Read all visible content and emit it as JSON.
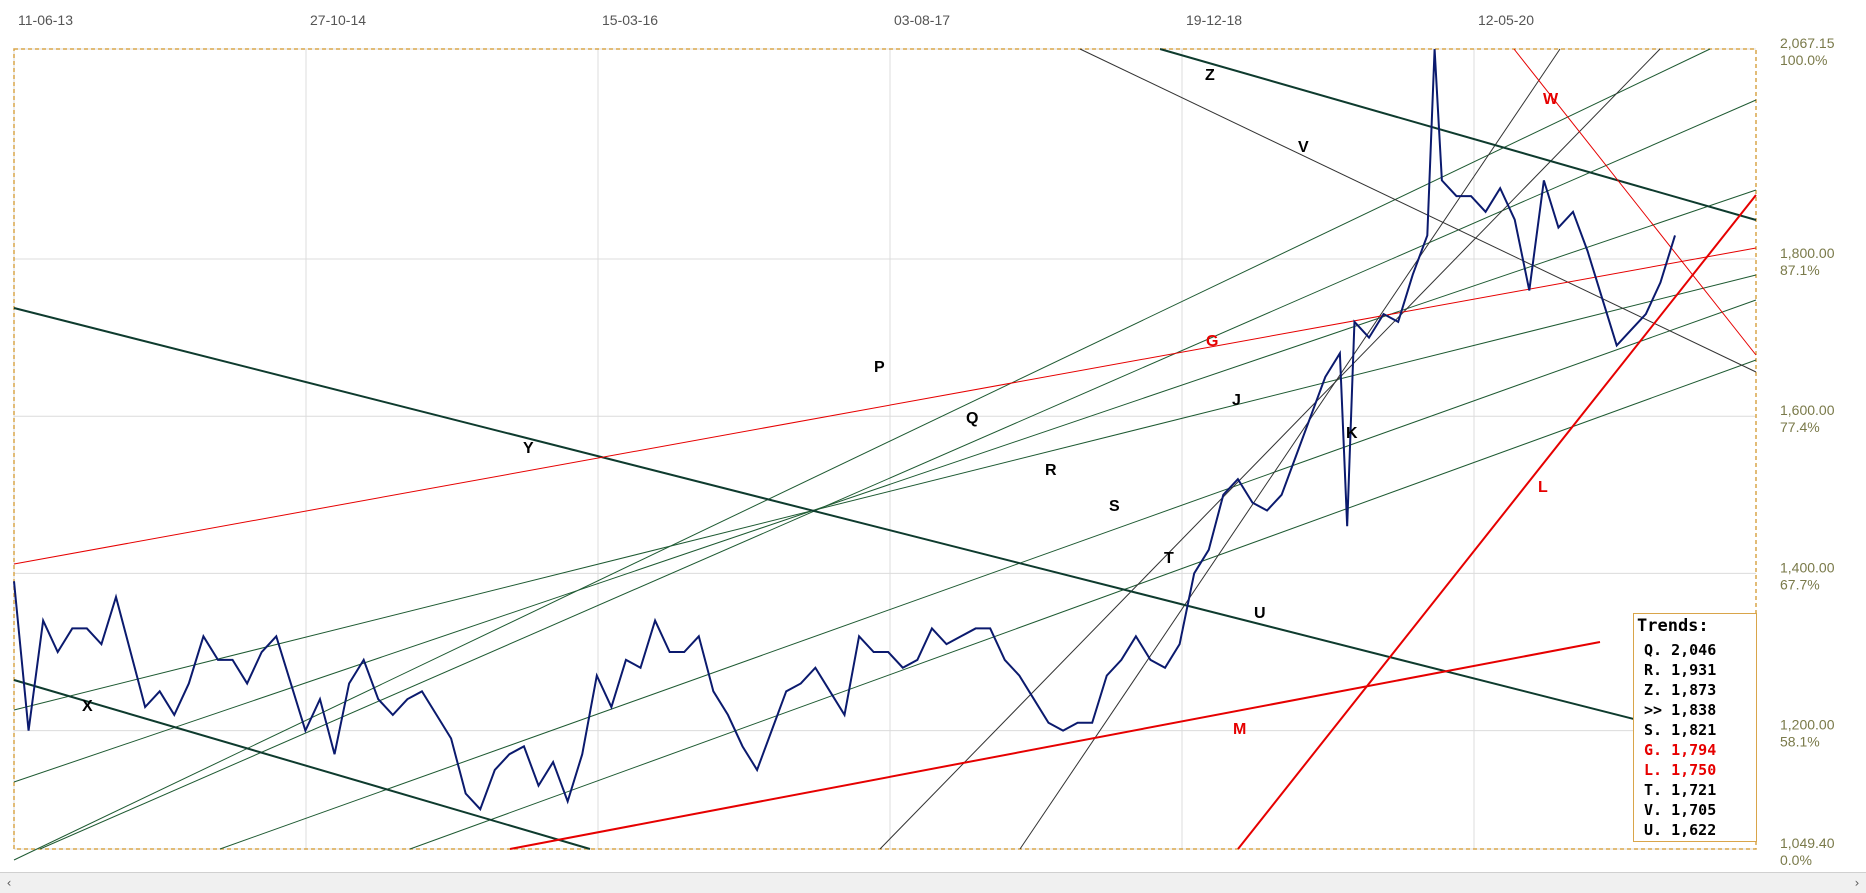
{
  "chart_data": {
    "type": "line",
    "x_axis": {
      "labels": [
        "11-06-13",
        "27-10-14",
        "15-03-16",
        "03-08-17",
        "19-12-18",
        "12-05-20"
      ],
      "range": [
        "11-06-13",
        "21-06-21"
      ]
    },
    "y_axis": {
      "range": [
        1049.4,
        2067.15
      ],
      "price_labels": [
        "2,067.15",
        "1,800.00",
        "1,600.00",
        "1,400.00",
        "1,200.00",
        "1,049.40"
      ],
      "percent_labels": [
        "100.0%",
        "87.1%",
        "77.4%",
        "67.7%",
        "58.1%",
        "0.0%"
      ],
      "price_values": [
        2067.15,
        1800,
        1600,
        1400,
        1200,
        1049.4
      ]
    },
    "grid": true,
    "series": [
      {
        "color": "#0b1a6e",
        "points": [
          [
            0.0,
            1390
          ],
          [
            0.01,
            1200
          ],
          [
            0.02,
            1340
          ],
          [
            0.03,
            1300
          ],
          [
            0.04,
            1330
          ],
          [
            0.05,
            1330
          ],
          [
            0.06,
            1310
          ],
          [
            0.07,
            1370
          ],
          [
            0.08,
            1300
          ],
          [
            0.09,
            1230
          ],
          [
            0.1,
            1250
          ],
          [
            0.11,
            1220
          ],
          [
            0.12,
            1260
          ],
          [
            0.13,
            1320
          ],
          [
            0.14,
            1290
          ],
          [
            0.15,
            1290
          ],
          [
            0.16,
            1260
          ],
          [
            0.17,
            1300
          ],
          [
            0.18,
            1320
          ],
          [
            0.19,
            1260
          ],
          [
            0.2,
            1200
          ],
          [
            0.21,
            1240
          ],
          [
            0.22,
            1170
          ],
          [
            0.23,
            1260
          ],
          [
            0.24,
            1290
          ],
          [
            0.25,
            1240
          ],
          [
            0.26,
            1220
          ],
          [
            0.27,
            1240
          ],
          [
            0.28,
            1250
          ],
          [
            0.29,
            1220
          ],
          [
            0.3,
            1190
          ],
          [
            0.31,
            1120
          ],
          [
            0.32,
            1100
          ],
          [
            0.33,
            1150
          ],
          [
            0.34,
            1170
          ],
          [
            0.35,
            1180
          ],
          [
            0.36,
            1130
          ],
          [
            0.37,
            1160
          ],
          [
            0.38,
            1110
          ],
          [
            0.39,
            1170
          ],
          [
            0.4,
            1270
          ],
          [
            0.41,
            1230
          ],
          [
            0.42,
            1290
          ],
          [
            0.43,
            1280
          ],
          [
            0.44,
            1340
          ],
          [
            0.45,
            1300
          ],
          [
            0.46,
            1300
          ],
          [
            0.47,
            1320
          ],
          [
            0.48,
            1250
          ],
          [
            0.49,
            1220
          ],
          [
            0.5,
            1180
          ],
          [
            0.51,
            1150
          ],
          [
            0.52,
            1200
          ],
          [
            0.53,
            1250
          ],
          [
            0.54,
            1260
          ],
          [
            0.55,
            1280
          ],
          [
            0.56,
            1250
          ],
          [
            0.57,
            1220
          ],
          [
            0.58,
            1320
          ],
          [
            0.59,
            1300
          ],
          [
            0.6,
            1300
          ],
          [
            0.61,
            1280
          ],
          [
            0.62,
            1290
          ],
          [
            0.63,
            1330
          ],
          [
            0.64,
            1310
          ],
          [
            0.65,
            1320
          ],
          [
            0.66,
            1330
          ],
          [
            0.67,
            1330
          ],
          [
            0.68,
            1290
          ],
          [
            0.69,
            1270
          ],
          [
            0.7,
            1240
          ],
          [
            0.71,
            1210
          ],
          [
            0.72,
            1200
          ],
          [
            0.73,
            1210
          ],
          [
            0.74,
            1210
          ],
          [
            0.75,
            1270
          ],
          [
            0.76,
            1290
          ],
          [
            0.77,
            1320
          ],
          [
            0.78,
            1290
          ],
          [
            0.79,
            1280
          ],
          [
            0.8,
            1310
          ],
          [
            0.81,
            1400
          ],
          [
            0.82,
            1430
          ],
          [
            0.83,
            1500
          ],
          [
            0.84,
            1520
          ],
          [
            0.85,
            1490
          ],
          [
            0.86,
            1480
          ],
          [
            0.87,
            1500
          ],
          [
            0.88,
            1550
          ],
          [
            0.89,
            1600
          ],
          [
            0.9,
            1650
          ],
          [
            0.91,
            1680
          ],
          [
            0.915,
            1460
          ],
          [
            0.92,
            1720
          ],
          [
            0.93,
            1700
          ],
          [
            0.94,
            1730
          ],
          [
            0.95,
            1720
          ],
          [
            0.96,
            1780
          ],
          [
            0.97,
            1830
          ],
          [
            0.975,
            2067
          ],
          [
            0.98,
            1900
          ],
          [
            0.99,
            1880
          ],
          [
            1.0,
            1880
          ],
          [
            1.01,
            1860
          ],
          [
            1.02,
            1890
          ],
          [
            1.03,
            1850
          ],
          [
            1.04,
            1760
          ],
          [
            1.05,
            1900
          ],
          [
            1.06,
            1840
          ],
          [
            1.07,
            1860
          ],
          [
            1.08,
            1810
          ],
          [
            1.09,
            1750
          ],
          [
            1.1,
            1690
          ],
          [
            1.11,
            1710
          ],
          [
            1.12,
            1730
          ],
          [
            1.13,
            1770
          ],
          [
            1.14,
            1830
          ]
        ]
      }
    ],
    "trend_lines": [
      {
        "label": "P",
        "color": "#1e5a32"
      },
      {
        "label": "Q",
        "color": "#1e5a32"
      },
      {
        "label": "R",
        "color": "#1e5a32"
      },
      {
        "label": "S",
        "color": "#1e5a32"
      },
      {
        "label": "T",
        "color": "#1e5a32"
      },
      {
        "label": "U",
        "color": "#1e5a32"
      },
      {
        "label": "J",
        "color": "#333333"
      },
      {
        "label": "K",
        "color": "#333333"
      },
      {
        "label": "V",
        "color": "#333333"
      },
      {
        "label": "Z",
        "color": "#0e3b2e"
      },
      {
        "label": "Y",
        "color": "#0e3b2e"
      },
      {
        "label": "X",
        "color": "#0e3b2e"
      },
      {
        "label": "G",
        "color": "#e60000"
      },
      {
        "label": "M",
        "color": "#e60000"
      },
      {
        "label": "L",
        "color": "#e60000"
      },
      {
        "label": "W",
        "color": "#e60000"
      }
    ],
    "trends_box": {
      "title": "Trends:",
      "items": [
        {
          "text": "Q. 2,046",
          "color": "#000000"
        },
        {
          "text": "R. 1,931",
          "color": "#000000"
        },
        {
          "text": "Z. 1,873",
          "color": "#000000"
        },
        {
          "text": ">> 1,838",
          "color": "#000000"
        },
        {
          "text": "S. 1,821",
          "color": "#000000"
        },
        {
          "text": "G. 1,794",
          "color": "#e60000"
        },
        {
          "text": "L. 1,750",
          "color": "#e60000"
        },
        {
          "text": "T. 1,721",
          "color": "#000000"
        },
        {
          "text": "V. 1,705",
          "color": "#000000"
        },
        {
          "text": "U. 1,622",
          "color": "#000000"
        }
      ]
    }
  },
  "scrollbar": {
    "left_arrow": "‹",
    "right_arrow": "›"
  }
}
